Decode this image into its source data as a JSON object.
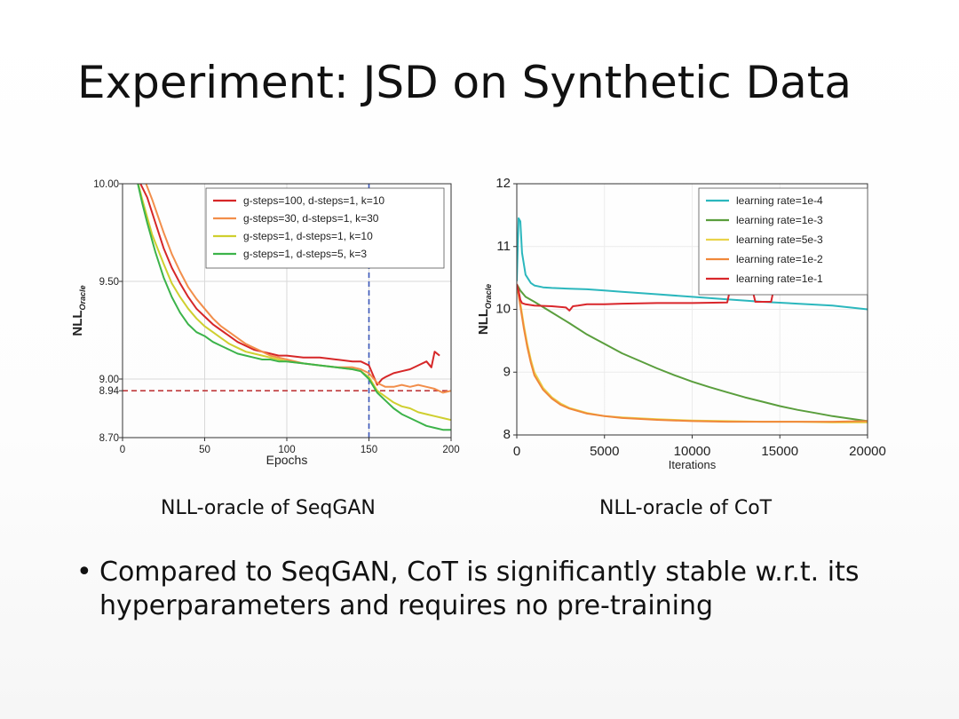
{
  "slide": {
    "title": "Experiment: JSD on Synthetic Data",
    "captions": [
      "NLL-oracle of SeqGAN",
      "NLL-oracle of CoT"
    ],
    "bullet": "Compared to SeqGAN, CoT is significantly stable w.r.t. its hyperparameters and requires no pre-training"
  },
  "chart_data": [
    {
      "type": "line",
      "title": "",
      "xlabel": "Epochs",
      "ylabel": "NLL",
      "ylabel_sub": "Oracle",
      "xlim": [
        0,
        200
      ],
      "ylim": [
        8.7,
        10.0
      ],
      "xticks": [
        0,
        50,
        100,
        150,
        200
      ],
      "yticks": [
        8.7,
        8.94,
        9.0,
        9.5,
        10.0
      ],
      "ytick_labels": [
        "8.70",
        "8.94",
        "9.00",
        "9.50",
        "10.00"
      ],
      "grid": true,
      "legend_position": "top-right",
      "reference_lines": [
        {
          "axis": "y",
          "value": 8.94,
          "color": "#c0393b",
          "style": "dashed"
        },
        {
          "axis": "x",
          "value": 150,
          "color": "#3a56b8",
          "style": "dashed"
        }
      ],
      "series": [
        {
          "name": "g-steps=100, d-steps=1, k=10",
          "color": "#d62728",
          "x": [
            8,
            15,
            20,
            25,
            30,
            35,
            40,
            45,
            50,
            55,
            60,
            65,
            70,
            75,
            80,
            85,
            90,
            95,
            100,
            110,
            120,
            130,
            140,
            145,
            150,
            152,
            155,
            158,
            160,
            165,
            170,
            175,
            180,
            185,
            188,
            190,
            193
          ],
          "y": [
            10.05,
            9.93,
            9.8,
            9.67,
            9.57,
            9.49,
            9.42,
            9.36,
            9.32,
            9.28,
            9.25,
            9.22,
            9.19,
            9.17,
            9.15,
            9.14,
            9.13,
            9.12,
            9.12,
            9.11,
            9.11,
            9.1,
            9.09,
            9.09,
            9.07,
            9.03,
            8.97,
            9.0,
            9.01,
            9.03,
            9.04,
            9.05,
            9.07,
            9.09,
            9.06,
            9.14,
            9.12
          ]
        },
        {
          "name": "g-steps=30,   d-steps=1, k=30",
          "color": "#f28e4b",
          "x": [
            12,
            18,
            25,
            30,
            35,
            40,
            45,
            50,
            55,
            60,
            65,
            70,
            75,
            80,
            85,
            90,
            95,
            100,
            110,
            120,
            130,
            140,
            145,
            150,
            155,
            160,
            165,
            170,
            175,
            180,
            185,
            190,
            195,
            200
          ],
          "y": [
            10.05,
            9.92,
            9.75,
            9.64,
            9.55,
            9.47,
            9.41,
            9.36,
            9.31,
            9.27,
            9.24,
            9.21,
            9.18,
            9.16,
            9.14,
            9.12,
            9.11,
            9.1,
            9.08,
            9.07,
            9.06,
            9.06,
            9.05,
            9.03,
            8.98,
            8.96,
            8.96,
            8.97,
            8.96,
            8.97,
            8.96,
            8.95,
            8.93,
            8.94
          ]
        },
        {
          "name": "g-steps=1,    d-steps=1, k=10",
          "color": "#cfcf2f",
          "x": [
            8,
            12,
            18,
            25,
            30,
            35,
            40,
            45,
            50,
            55,
            60,
            65,
            70,
            75,
            80,
            85,
            90,
            95,
            100,
            110,
            120,
            130,
            140,
            145,
            150,
            155,
            160,
            165,
            170,
            175,
            180,
            185,
            190,
            195,
            200
          ],
          "y": [
            10.05,
            9.92,
            9.74,
            9.59,
            9.49,
            9.42,
            9.36,
            9.31,
            9.27,
            9.24,
            9.21,
            9.18,
            9.16,
            9.14,
            9.13,
            9.12,
            9.11,
            9.1,
            9.09,
            9.08,
            9.07,
            9.06,
            9.05,
            9.04,
            9.01,
            8.94,
            8.91,
            8.88,
            8.86,
            8.85,
            8.83,
            8.82,
            8.81,
            8.8,
            8.79
          ]
        },
        {
          "name": "g-steps=1,    d-steps=5, k=3",
          "color": "#3cb34a",
          "x": [
            8,
            12,
            15,
            20,
            25,
            30,
            35,
            40,
            45,
            50,
            55,
            60,
            65,
            70,
            75,
            80,
            85,
            90,
            95,
            100,
            110,
            120,
            130,
            140,
            145,
            150,
            155,
            160,
            165,
            170,
            175,
            180,
            185,
            190,
            195,
            200
          ],
          "y": [
            10.05,
            9.9,
            9.8,
            9.65,
            9.52,
            9.42,
            9.34,
            9.28,
            9.24,
            9.22,
            9.19,
            9.17,
            9.15,
            9.13,
            9.12,
            9.11,
            9.1,
            9.1,
            9.09,
            9.09,
            9.08,
            9.07,
            9.06,
            9.05,
            9.04,
            9.0,
            8.93,
            8.89,
            8.85,
            8.82,
            8.8,
            8.78,
            8.76,
            8.75,
            8.74,
            8.74
          ]
        }
      ]
    },
    {
      "type": "line",
      "title": "",
      "xlabel": "Iterations",
      "ylabel": "NLL",
      "ylabel_sub": "Oracle",
      "xlim": [
        0,
        20000
      ],
      "ylim": [
        8,
        12
      ],
      "xticks": [
        0,
        5000,
        10000,
        15000,
        20000
      ],
      "yticks": [
        8,
        9,
        10,
        11,
        12
      ],
      "ytick_labels": [
        "8",
        "9",
        "10",
        "11",
        "12"
      ],
      "grid": true,
      "legend_position": "top-right",
      "series": [
        {
          "name": "learning rate=1e-4",
          "color": "#2bb7bd",
          "x": [
            0,
            100,
            200,
            300,
            500,
            800,
            1000,
            1500,
            2000,
            3000,
            4000,
            5000,
            6000,
            8000,
            10000,
            12000,
            14000,
            16000,
            18000,
            19000,
            20000
          ],
          "y": [
            10.45,
            11.45,
            11.4,
            10.9,
            10.55,
            10.42,
            10.38,
            10.35,
            10.34,
            10.33,
            10.32,
            10.3,
            10.28,
            10.24,
            10.2,
            10.16,
            10.12,
            10.09,
            10.06,
            10.03,
            10.0
          ]
        },
        {
          "name": "learning rate=1e-3",
          "color": "#5a9e3d",
          "x": [
            0,
            200,
            500,
            1000,
            2000,
            3000,
            4000,
            5000,
            6000,
            7000,
            8000,
            9000,
            10000,
            11000,
            12000,
            13000,
            14000,
            15000,
            16000,
            17000,
            18000,
            19000,
            20000
          ],
          "y": [
            10.4,
            10.3,
            10.2,
            10.12,
            9.95,
            9.78,
            9.6,
            9.45,
            9.3,
            9.18,
            9.06,
            8.95,
            8.85,
            8.76,
            8.68,
            8.6,
            8.53,
            8.46,
            8.4,
            8.35,
            8.3,
            8.26,
            8.22
          ]
        },
        {
          "name": "learning rate=5e-3",
          "color": "#e9d34a",
          "x": [
            0,
            200,
            400,
            600,
            800,
            1000,
            1500,
            2000,
            2500,
            3000,
            4000,
            5000,
            6000,
            8000,
            10000,
            12000,
            14000,
            16000,
            18000,
            20000
          ],
          "y": [
            10.4,
            10.1,
            9.75,
            9.45,
            9.2,
            9.0,
            8.75,
            8.6,
            8.5,
            8.43,
            8.35,
            8.3,
            8.28,
            8.25,
            8.23,
            8.22,
            8.21,
            8.21,
            8.2,
            8.2
          ]
        },
        {
          "name": "learning rate=1e-2",
          "color": "#f0883a",
          "x": [
            0,
            200,
            400,
            600,
            800,
            1000,
            1500,
            2000,
            2500,
            3000,
            4000,
            5000,
            6000,
            8000,
            10000,
            12000,
            14000,
            16000,
            18000,
            20000
          ],
          "y": [
            10.4,
            10.05,
            9.7,
            9.4,
            9.15,
            8.95,
            8.72,
            8.58,
            8.48,
            8.42,
            8.34,
            8.3,
            8.27,
            8.24,
            8.22,
            8.21,
            8.21,
            8.21,
            8.21,
            8.22
          ]
        },
        {
          "name": "learning rate=1e-1",
          "color": "#d9262b",
          "x": [
            0,
            100,
            200,
            300,
            500,
            1000,
            2000,
            2800,
            3000,
            3200,
            3500,
            4000,
            5000,
            6000,
            8000,
            10000,
            12000,
            12100,
            13000,
            13500,
            13600,
            14500,
            14600,
            15500,
            17000,
            18500,
            20000
          ],
          "y": [
            10.4,
            10.3,
            10.15,
            10.1,
            10.08,
            10.06,
            10.05,
            10.03,
            9.98,
            10.05,
            10.06,
            10.08,
            10.08,
            10.09,
            10.1,
            10.1,
            10.11,
            10.24,
            10.24,
            10.24,
            10.12,
            10.12,
            10.25,
            10.26,
            10.26,
            10.27,
            10.27
          ]
        }
      ]
    }
  ]
}
